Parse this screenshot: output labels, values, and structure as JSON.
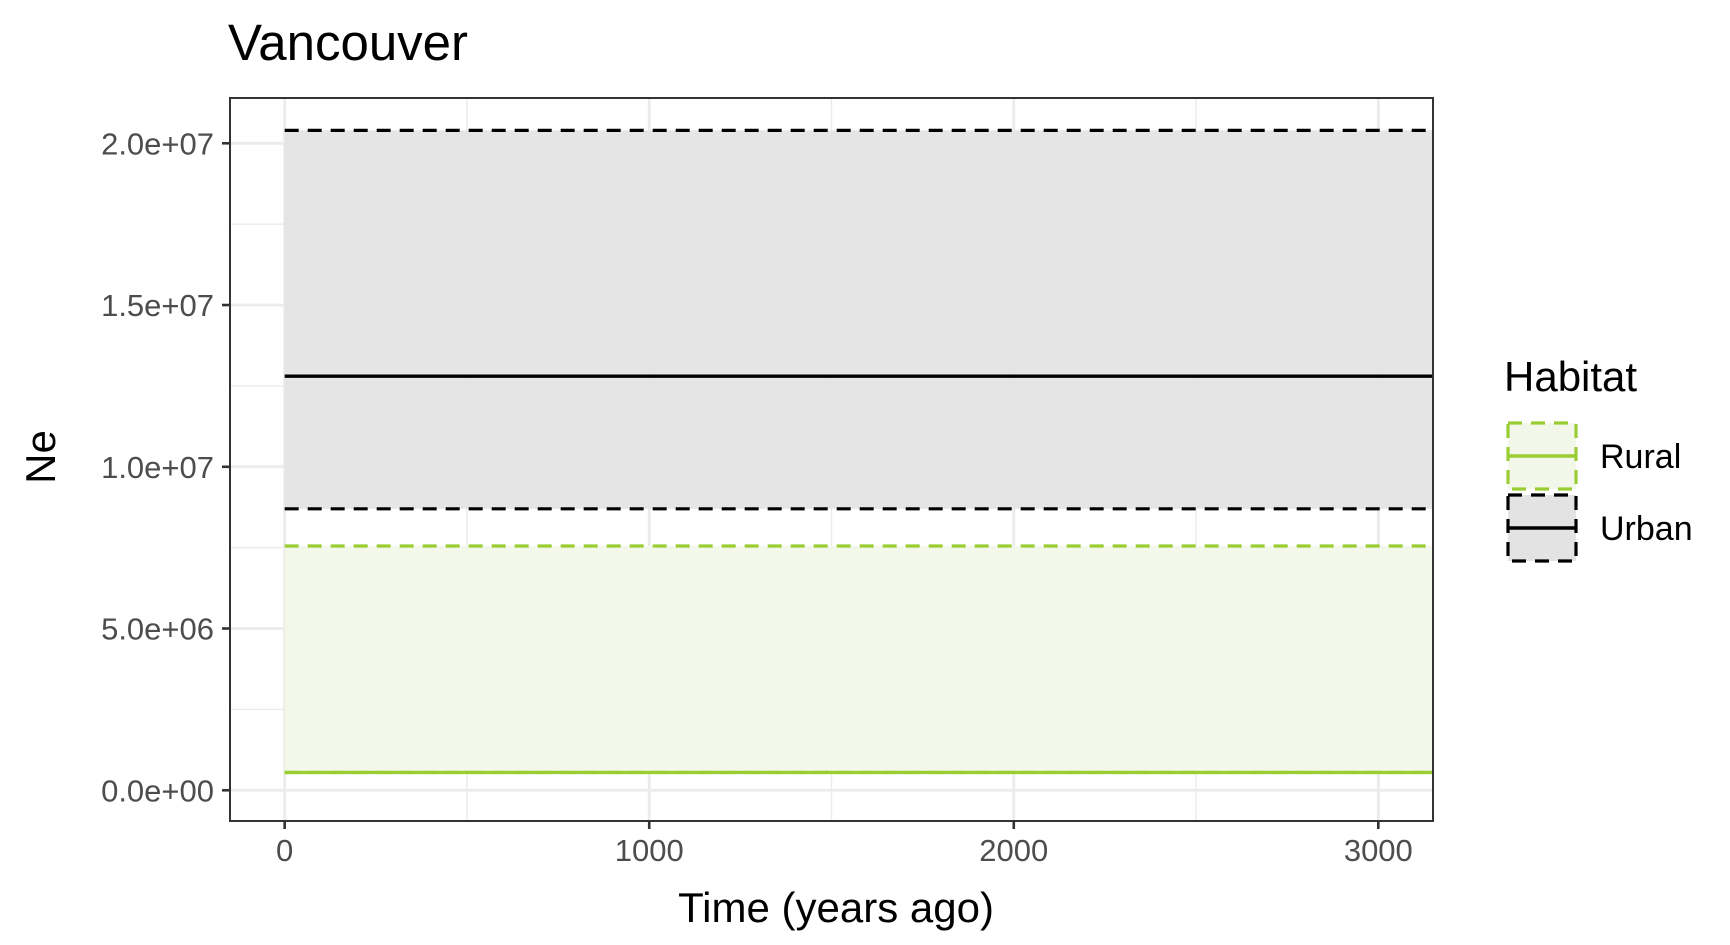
{
  "chart_data": {
    "type": "area",
    "title": "Vancouver",
    "xlabel": "Time (years ago)",
    "ylabel": "Ne",
    "xlim": [
      -150,
      3150
    ],
    "ylim": [
      -950000,
      21400000
    ],
    "x_ticks": [
      0,
      1000,
      2000,
      3000
    ],
    "x_tick_labels": [
      "0",
      "1000",
      "2000",
      "3000"
    ],
    "y_ticks": [
      0,
      5000000,
      10000000,
      15000000,
      20000000
    ],
    "y_tick_labels": [
      "0.0e+00",
      "5.0e+06",
      "1.0e+07",
      "1.5e+07",
      "2.0e+07"
    ],
    "grid": true,
    "legend": {
      "title": "Habitat",
      "placement": "right",
      "entries": [
        "Rural",
        "Urban"
      ]
    },
    "series": [
      {
        "name": "Rural",
        "color": "#9acd32",
        "fill": "#f3f7e9",
        "x": [
          0,
          3150
        ],
        "median": [
          550000,
          550000
        ],
        "lower": [
          550000,
          550000
        ],
        "upper": [
          7550000,
          7550000
        ]
      },
      {
        "name": "Urban",
        "color": "#000000",
        "fill": "#e3e3e3",
        "x": [
          0,
          3150
        ],
        "median": [
          12800000,
          12800000
        ],
        "lower": [
          8700000,
          8700000
        ],
        "upper": [
          20400000,
          20400000
        ]
      }
    ]
  }
}
